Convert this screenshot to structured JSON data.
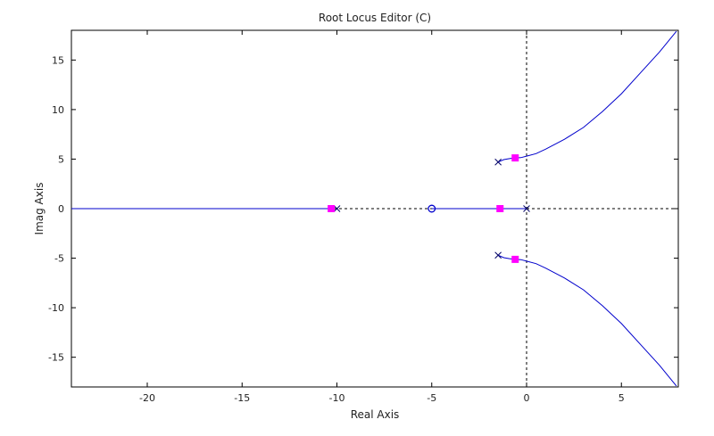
{
  "chart_data": {
    "type": "line",
    "title": "Root Locus Editor (C)",
    "xlabel": "Real Axis",
    "ylabel": "Imag Axis",
    "xlim": [
      -24,
      8
    ],
    "ylim": [
      -18,
      18
    ],
    "xticks": [
      -20,
      -15,
      -10,
      -5,
      0,
      5
    ],
    "yticks": [
      -15,
      -10,
      -5,
      0,
      5,
      10,
      15
    ],
    "colors": {
      "locus": "#0000cc",
      "closed_loop_pole": "#ff00ff",
      "open_loop_marker": "#000066",
      "axes": "#000000",
      "reference_line": "#000000"
    },
    "branches": [
      {
        "name": "",
        "points": [
          [
            -10.3,
            0
          ],
          [
            -24,
            0
          ]
        ]
      },
      {
        "name": "",
        "points": [
          [
            -1.4,
            0
          ],
          [
            -5,
            0
          ]
        ]
      },
      {
        "name": "",
        "points": [
          [
            0,
            0
          ],
          [
            -1.4,
            0
          ]
        ]
      },
      {
        "name": "",
        "points": [
          [
            -1.5,
            4.7
          ],
          [
            -1.2,
            4.95
          ],
          [
            -0.9,
            5.05
          ],
          [
            -0.6,
            5.12
          ],
          [
            -0.3,
            5.15
          ],
          [
            0,
            5.3
          ],
          [
            0.5,
            5.55
          ],
          [
            1,
            6
          ],
          [
            2,
            7
          ],
          [
            3,
            8.2
          ],
          [
            4,
            9.8
          ],
          [
            5,
            11.6
          ],
          [
            6,
            13.7
          ],
          [
            7,
            15.8
          ],
          [
            7.9,
            17.9
          ]
        ]
      },
      {
        "name": "",
        "points": [
          [
            -1.5,
            -4.7
          ],
          [
            -1.2,
            -4.95
          ],
          [
            -0.9,
            -5.05
          ],
          [
            -0.6,
            -5.12
          ],
          [
            -0.3,
            -5.15
          ],
          [
            0,
            -5.3
          ],
          [
            0.5,
            -5.55
          ],
          [
            1,
            -6
          ],
          [
            2,
            -7
          ],
          [
            3,
            -8.2
          ],
          [
            4,
            -9.8
          ],
          [
            5,
            -11.6
          ],
          [
            6,
            -13.7
          ],
          [
            7,
            -15.8
          ],
          [
            7.9,
            -17.9
          ]
        ]
      }
    ],
    "open_loop_poles": [
      [
        -10,
        0
      ],
      [
        0,
        0
      ],
      [
        -1.5,
        4.7
      ],
      [
        -1.5,
        -4.7
      ]
    ],
    "open_loop_zeros": [
      [
        -5,
        0
      ]
    ],
    "closed_loop_poles": [
      [
        -10.3,
        0
      ],
      [
        -1.4,
        0
      ],
      [
        -0.6,
        5.12
      ],
      [
        -0.6,
        -5.12
      ]
    ],
    "reference_lines": {
      "horizontal_at": 0,
      "vertical_at": 0,
      "style": "dashed"
    },
    "grid": false,
    "legend": "none"
  }
}
